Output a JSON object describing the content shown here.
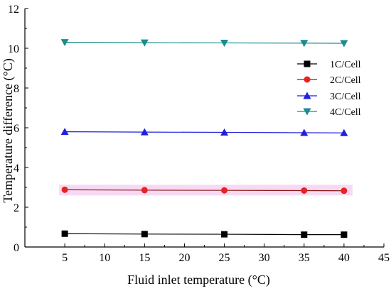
{
  "chart_data": {
    "type": "line",
    "title": "",
    "xlabel": "Fluid inlet temperature (°C)",
    "ylabel": "Temperature difference (°C)",
    "xlim": [
      0,
      45
    ],
    "ylim": [
      0,
      12
    ],
    "xticks": [
      5,
      10,
      15,
      20,
      25,
      30,
      35,
      40,
      45
    ],
    "yticks": [
      0,
      2,
      4,
      6,
      8,
      10,
      12
    ],
    "grid": false,
    "legend_position": "top-right",
    "x": [
      5,
      15,
      25,
      35,
      40
    ],
    "series": [
      {
        "name": "1C/Cell",
        "values": [
          0.67,
          0.65,
          0.64,
          0.62,
          0.62
        ],
        "color": "#000000",
        "marker": "square"
      },
      {
        "name": "2C/Cell",
        "values": [
          2.88,
          2.86,
          2.85,
          2.84,
          2.83
        ],
        "color": "#8b1a1a",
        "marker_color": "#e8231f",
        "marker": "circle",
        "highlight": "#f7d9f4"
      },
      {
        "name": "3C/Cell",
        "values": [
          5.8,
          5.78,
          5.77,
          5.75,
          5.74
        ],
        "color": "#1f1fe0",
        "marker": "triangle-up"
      },
      {
        "name": "4C/Cell",
        "values": [
          10.3,
          10.28,
          10.27,
          10.26,
          10.25
        ],
        "color": "#1a8c8c",
        "marker": "triangle-down"
      }
    ]
  }
}
